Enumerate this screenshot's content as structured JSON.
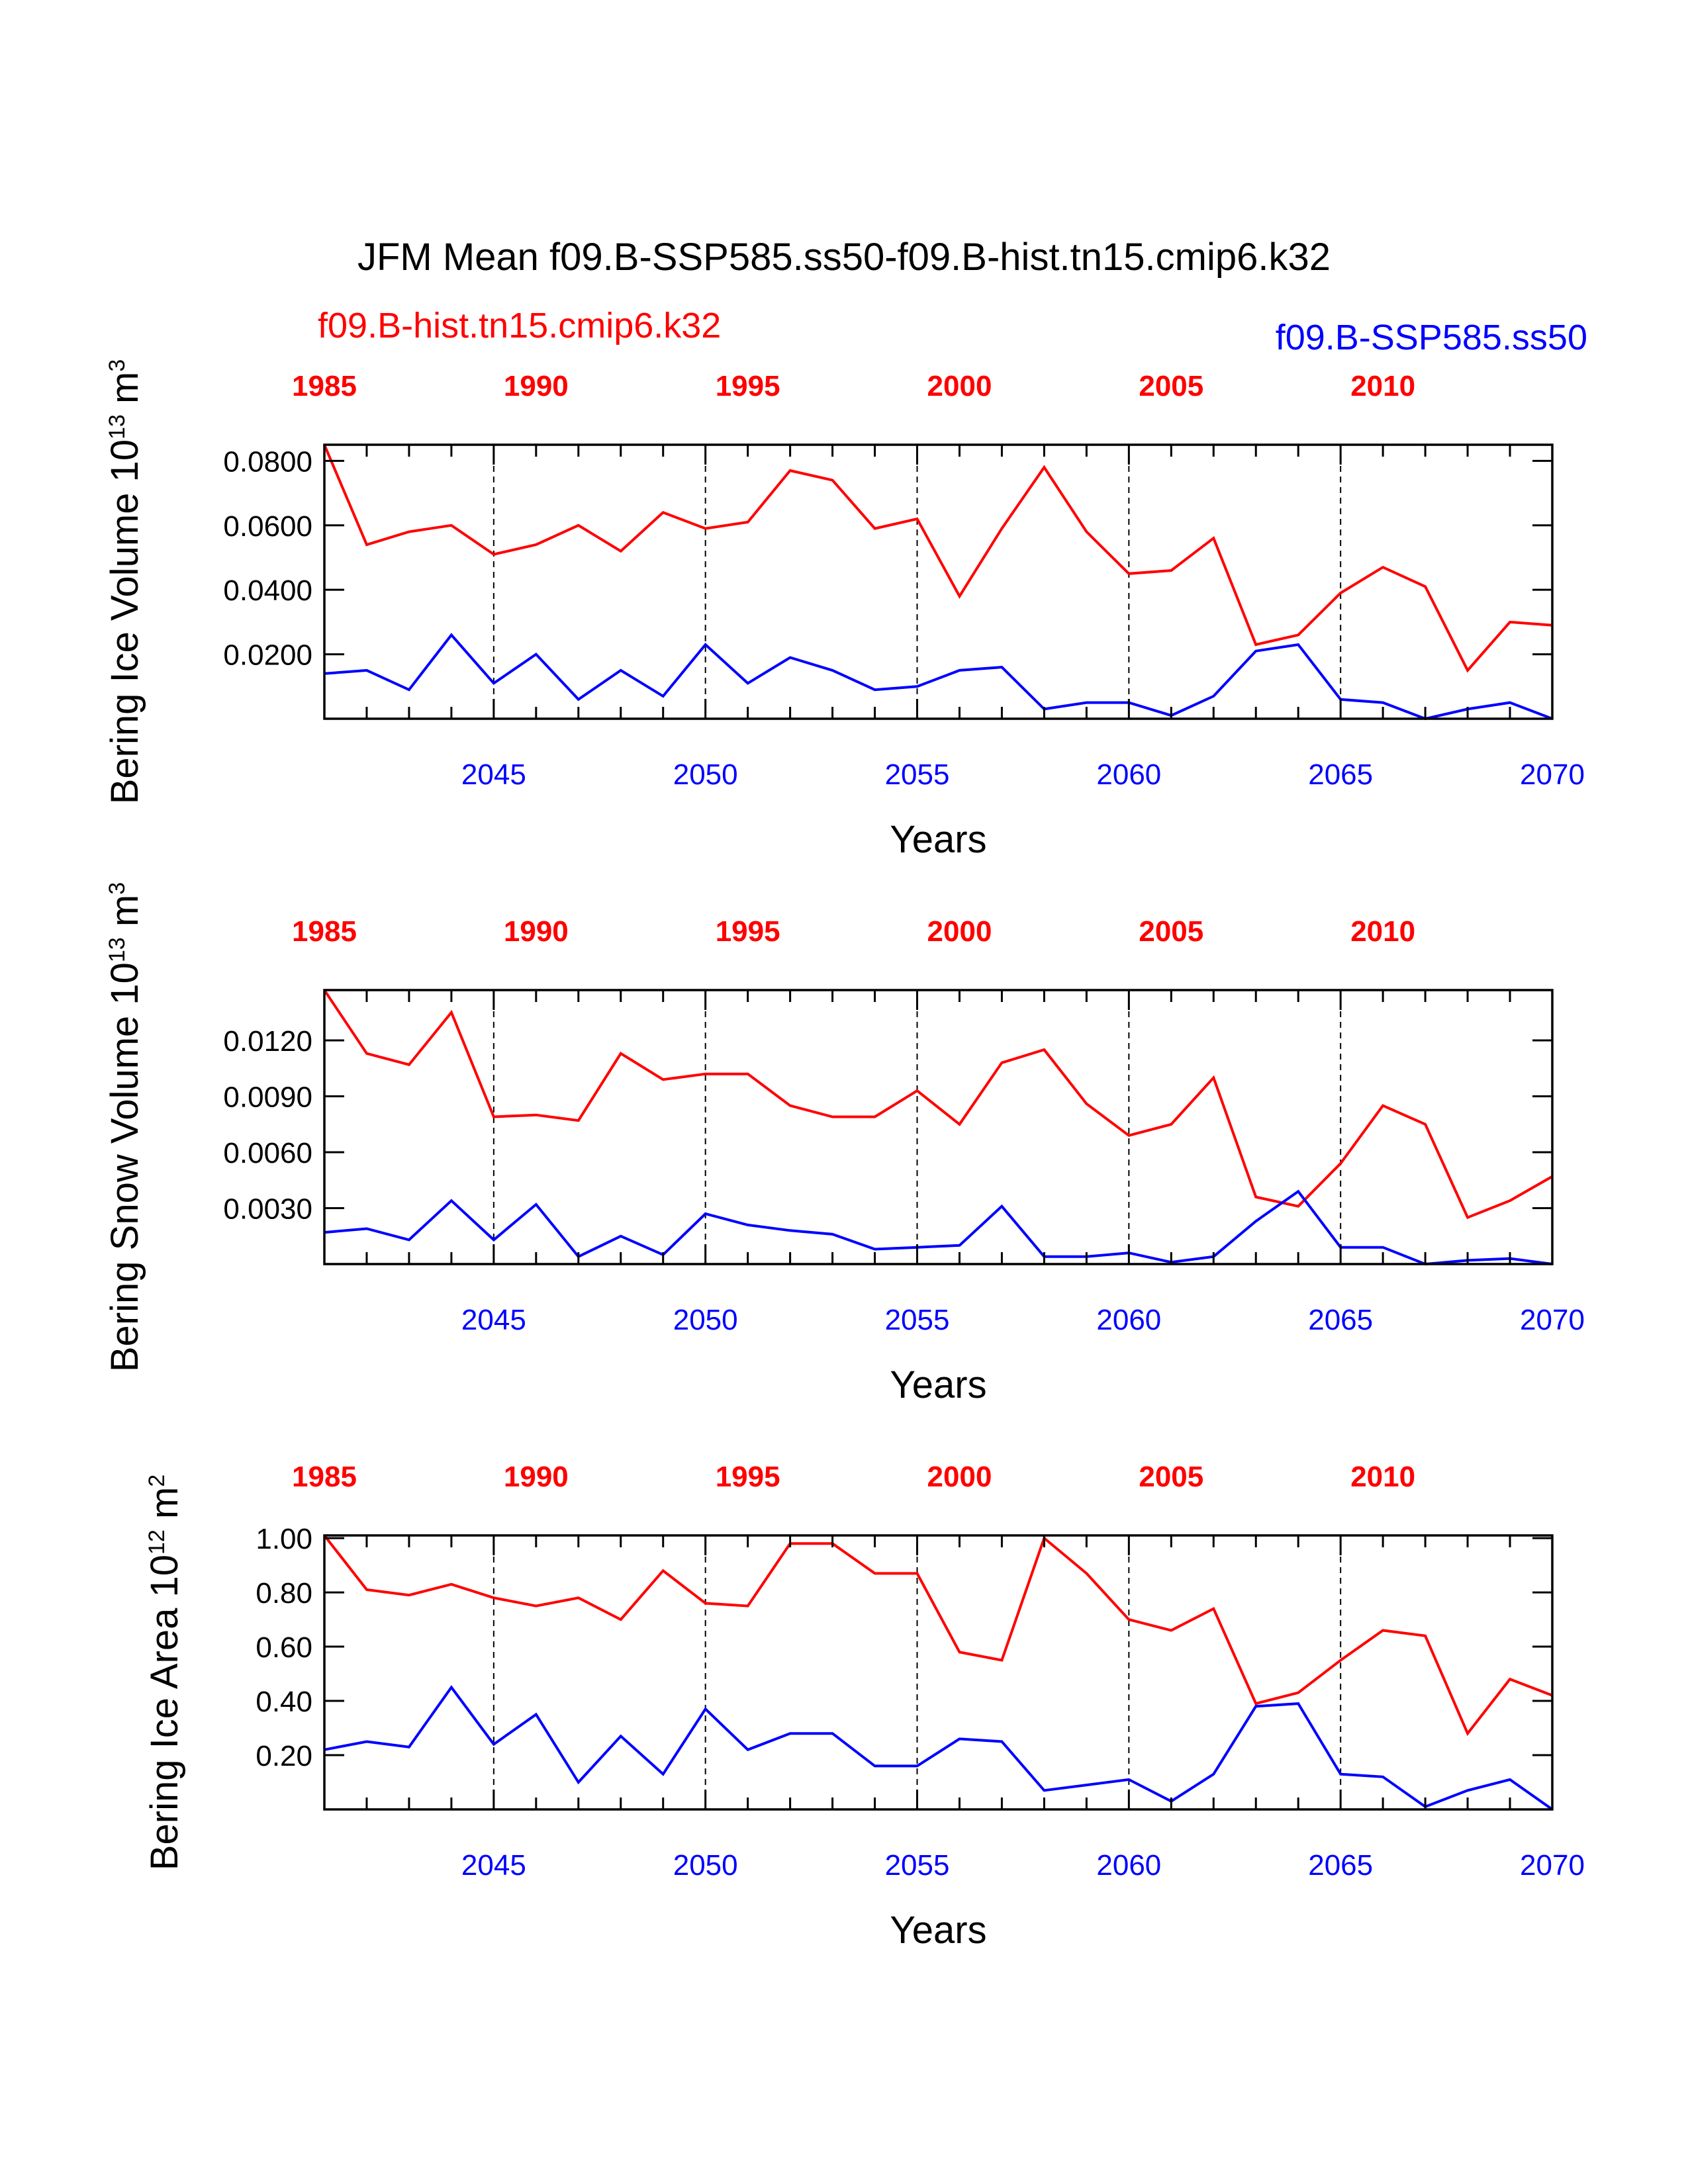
{
  "title": "JFM Mean f09.B-SSP585.ss50-f09.B-hist.tn15.cmip6.k32",
  "legend": {
    "red": "f09.B-hist.tn15.cmip6.k32",
    "blue": "f09.B-SSP585.ss50"
  },
  "colors": {
    "red": "#ff0000",
    "blue": "#0000ff",
    "axis": "#000000"
  },
  "chart_data": [
    {
      "type": "line",
      "ylabel_main": "Bering Ice Volume 10",
      "ylabel_sup1": "13",
      "ylabel_mid": " m",
      "ylabel_sup2": "3",
      "xlabel": "Years",
      "xlim": [
        2041,
        2070
      ],
      "ylim": [
        0,
        0.085
      ],
      "y_ticks": [
        0.02,
        0.04,
        0.06,
        0.08
      ],
      "y_tick_labels": [
        "0.0200",
        "0.0400",
        "0.0600",
        "0.0800"
      ],
      "top_ticks": [
        "1985",
        "1990",
        "1995",
        "2000",
        "2005",
        "2010"
      ],
      "bottom_ticks": [
        "2045",
        "2050",
        "2055",
        "2060",
        "2065",
        "2070"
      ],
      "series": [
        {
          "name": "f09.B-hist.tn15.cmip6.k32",
          "color": "#ff0000",
          "values": [
            0.085,
            0.054,
            0.058,
            0.06,
            0.051,
            0.054,
            0.06,
            0.052,
            0.064,
            0.059,
            0.061,
            0.077,
            0.074,
            0.059,
            0.062,
            0.038,
            0.059,
            0.078,
            0.058,
            0.045,
            0.046,
            0.056,
            0.023,
            0.026,
            0.039,
            0.047,
            0.041,
            0.015,
            0.03,
            0.029
          ]
        },
        {
          "name": "f09.B-SSP585.ss50",
          "color": "#0000ff",
          "values": [
            0.014,
            0.015,
            0.009,
            0.026,
            0.011,
            0.02,
            0.006,
            0.015,
            0.007,
            0.023,
            0.011,
            0.019,
            0.015,
            0.009,
            0.01,
            0.015,
            0.016,
            0.003,
            0.005,
            0.005,
            0.001,
            0.007,
            0.021,
            0.023,
            0.006,
            0.005,
            0.0,
            0.003,
            0.005,
            0.0
          ]
        }
      ]
    },
    {
      "type": "line",
      "ylabel_main": "Bering Snow Volume 10",
      "ylabel_sup1": "13",
      "ylabel_mid": " m",
      "ylabel_sup2": "3",
      "xlabel": "Years",
      "xlim": [
        2041,
        2070
      ],
      "ylim": [
        0,
        0.0147
      ],
      "y_ticks": [
        0.003,
        0.006,
        0.009,
        0.012
      ],
      "y_tick_labels": [
        "0.0030",
        "0.0060",
        "0.0090",
        "0.0120"
      ],
      "top_ticks": [
        "1985",
        "1990",
        "1995",
        "2000",
        "2005",
        "2010"
      ],
      "bottom_ticks": [
        "2045",
        "2050",
        "2055",
        "2060",
        "2065",
        "2070"
      ],
      "series": [
        {
          "name": "f09.B-hist.tn15.cmip6.k32",
          "color": "#ff0000",
          "values": [
            0.0147,
            0.0113,
            0.0107,
            0.0135,
            0.0079,
            0.008,
            0.0077,
            0.0113,
            0.0099,
            0.0102,
            0.0102,
            0.0085,
            0.0079,
            0.0079,
            0.0093,
            0.0075,
            0.0108,
            0.0115,
            0.0086,
            0.0069,
            0.0075,
            0.01,
            0.0036,
            0.0031,
            0.0054,
            0.0085,
            0.0075,
            0.0025,
            0.0034,
            0.0047
          ]
        },
        {
          "name": "f09.B-SSP585.ss50",
          "color": "#0000ff",
          "values": [
            0.0017,
            0.0019,
            0.0013,
            0.0034,
            0.0013,
            0.0032,
            0.0004,
            0.0015,
            0.0005,
            0.0027,
            0.0021,
            0.0018,
            0.0016,
            0.0008,
            0.0009,
            0.001,
            0.0031,
            0.0004,
            0.0004,
            0.0006,
            0.0001,
            0.0004,
            0.0023,
            0.0039,
            0.0009,
            0.0009,
            0.0,
            0.0002,
            0.0003,
            0.0
          ]
        }
      ]
    },
    {
      "type": "line",
      "ylabel_main": "Bering Ice Area 10",
      "ylabel_sup1": "12",
      "ylabel_mid": " m",
      "ylabel_sup2": "2",
      "xlabel": "Years",
      "xlim": [
        2041,
        2070
      ],
      "ylim": [
        0,
        1.01
      ],
      "y_ticks": [
        0.2,
        0.4,
        0.6,
        0.8,
        1.0
      ],
      "y_tick_labels": [
        "0.20",
        "0.40",
        "0.60",
        "0.80",
        "1.00"
      ],
      "top_ticks": [
        "1985",
        "1990",
        "1995",
        "2000",
        "2005",
        "2010"
      ],
      "bottom_ticks": [
        "2045",
        "2050",
        "2055",
        "2060",
        "2065",
        "2070"
      ],
      "series": [
        {
          "name": "f09.B-hist.tn15.cmip6.k32",
          "color": "#ff0000",
          "values": [
            1.01,
            0.81,
            0.79,
            0.83,
            0.78,
            0.75,
            0.78,
            0.7,
            0.88,
            0.76,
            0.75,
            0.98,
            0.98,
            0.87,
            0.87,
            0.58,
            0.55,
            1.0,
            0.87,
            0.7,
            0.66,
            0.74,
            0.39,
            0.43,
            0.55,
            0.66,
            0.64,
            0.28,
            0.48,
            0.42
          ]
        },
        {
          "name": "f09.B-SSP585.ss50",
          "color": "#0000ff",
          "values": [
            0.22,
            0.25,
            0.23,
            0.45,
            0.24,
            0.35,
            0.1,
            0.27,
            0.13,
            0.37,
            0.22,
            0.28,
            0.28,
            0.16,
            0.16,
            0.26,
            0.25,
            0.07,
            0.09,
            0.11,
            0.03,
            0.13,
            0.38,
            0.39,
            0.13,
            0.12,
            0.01,
            0.07,
            0.11,
            0.0
          ]
        }
      ]
    }
  ]
}
